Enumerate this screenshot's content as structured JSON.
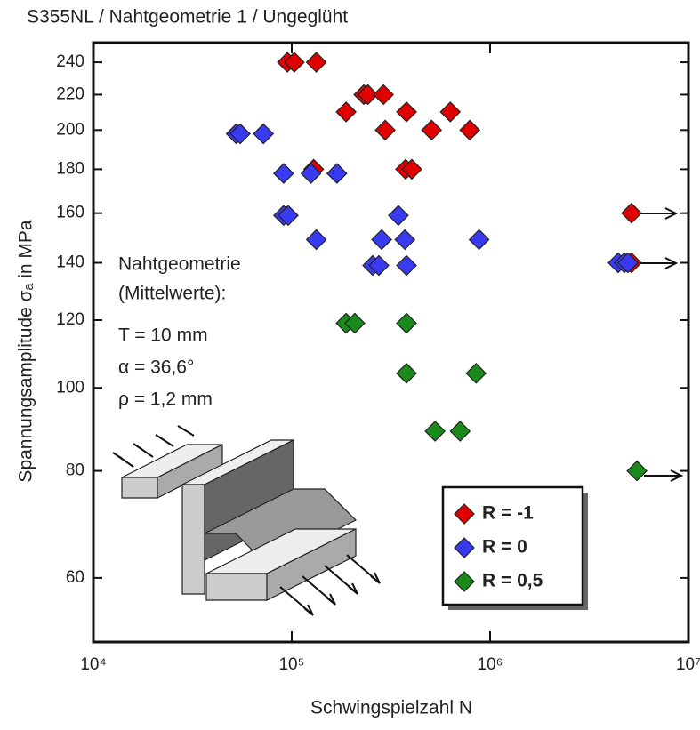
{
  "chart_data": {
    "type": "scatter",
    "title": "S355NL  /  Nahtgeometrie 1  /  Ungeglüht",
    "x_label": "Schwingspielzahl N",
    "y_label": "Spannungsamplitude σₐ in MPa",
    "x_log": true,
    "y_log": true,
    "xlim": [
      10000,
      10000000
    ],
    "xticks": [
      {
        "value": 10000,
        "label": "10⁴"
      },
      {
        "value": 100000,
        "label": "10⁵"
      },
      {
        "value": 1000000,
        "label": "10⁶"
      },
      {
        "value": 10000000,
        "label": "10⁷"
      }
    ],
    "ylim": [
      50.5,
      253
    ],
    "yticks": [
      60,
      80,
      100,
      120,
      140,
      160,
      180,
      200,
      220,
      240
    ],
    "legend_position": "lower right",
    "annotations": [
      "Nahtgeometrie",
      "(Mittelwerte):",
      "T = 10 mm",
      "α = 36,6°",
      "ρ = 1,2 mm"
    ],
    "series": [
      {
        "name": "R = -1",
        "color": "#e00000",
        "x": [
          95000,
          103000,
          133000,
          231000,
          242000,
          290000,
          188000,
          379000,
          630000,
          296000,
          507000,
          790000,
          129000,
          375000,
          403000,
          5160000,
          5160000
        ],
        "values": [
          240,
          240,
          240,
          220,
          220,
          220,
          210,
          210,
          210,
          200,
          200,
          200,
          180,
          180,
          180,
          160,
          140
        ]
      },
      {
        "name": "R = 0",
        "color": "#3a3af0",
        "x": [
          52500,
          55000,
          72000,
          91000,
          125000,
          169000,
          91000,
          96000,
          345000,
          133000,
          284000,
          372000,
          880000,
          256000,
          275000,
          379000,
          4420000,
          4750000,
          4950000
        ],
        "values": [
          198,
          198,
          198,
          178,
          178,
          178,
          159,
          159,
          159,
          149,
          149,
          149,
          149,
          139,
          139,
          139,
          140,
          140,
          140
        ]
      },
      {
        "name": "R = 0,5",
        "color": "#1a8a1a",
        "x": [
          188000,
          208000,
          379000,
          379000,
          850000,
          528000,
          706000,
          5500000
        ],
        "values": [
          119,
          119,
          119,
          104,
          104,
          89,
          89,
          80
        ]
      }
    ]
  }
}
